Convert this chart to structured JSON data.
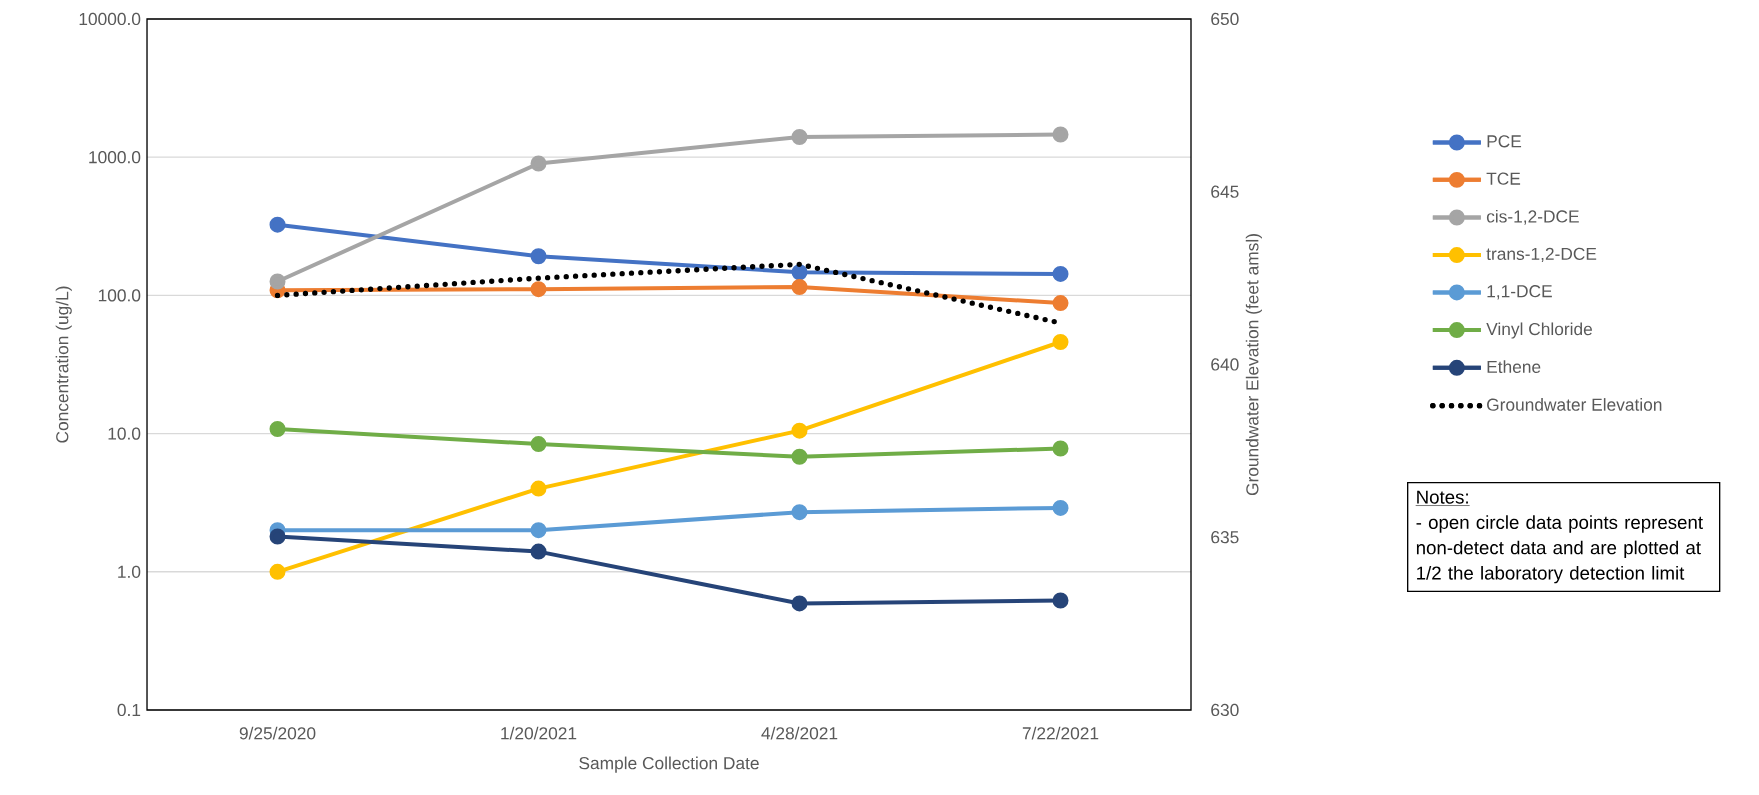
{
  "chart_data": {
    "type": "line",
    "xlabel": "Sample Collection Date",
    "ylabel": "Concentration (ug/L)",
    "y2label": "Groundwater Elevation (feet amsl)",
    "categories": [
      "9/25/2020",
      "1/20/2021",
      "4/28/2021",
      "7/22/2021"
    ],
    "log": "y",
    "grid": "y",
    "legend": "right",
    "marker": "circle",
    "ylim": [
      0.1,
      10000
    ],
    "yticks": [
      {
        "value": 0.1,
        "label": "0.1"
      },
      {
        "value": 1,
        "label": "1.0"
      },
      {
        "value": 10,
        "label": "10.0"
      },
      {
        "value": 100,
        "label": "100.0"
      },
      {
        "value": 1000,
        "label": "1000.0"
      },
      {
        "value": 10000,
        "label": "10000.0"
      }
    ],
    "y2lim": [
      630,
      650
    ],
    "y2ticks": [
      630,
      635,
      640,
      645,
      650
    ],
    "series": [
      {
        "name": "PCE",
        "color": "#4472c4",
        "values": [
          325,
          192,
          147,
          143
        ]
      },
      {
        "name": "TCE",
        "color": "#ed7d31",
        "values": [
          109,
          111,
          115,
          88
        ]
      },
      {
        "name": "cis-1,2-DCE",
        "color": "#a5a5a5",
        "values": [
          126,
          900,
          1400,
          1460
        ]
      },
      {
        "name": "trans-1,2-DCE",
        "color": "#ffc000",
        "values": [
          1.0,
          4.0,
          10.5,
          46
        ]
      },
      {
        "name": "1,1-DCE",
        "color": "#5b9bd5",
        "values": [
          2.0,
          2.0,
          2.7,
          2.9
        ]
      },
      {
        "name": "Vinyl Chloride",
        "color": "#70ad47",
        "values": [
          10.8,
          8.4,
          6.8,
          7.8
        ]
      },
      {
        "name": "Ethene",
        "color": "#264478",
        "values": [
          1.8,
          1.4,
          0.59,
          0.62
        ]
      },
      {
        "name": "Groundwater Elevation",
        "color": "#000000",
        "axis": "y2",
        "marker": "none",
        "line_style": "dotted",
        "values": [
          642.0,
          642.5,
          642.9,
          641.2
        ]
      }
    ],
    "annotations": [
      "Notes:",
      "- open circle data points represent non-detect data and are plotted at 1/2 the laboratory detection limit"
    ]
  }
}
